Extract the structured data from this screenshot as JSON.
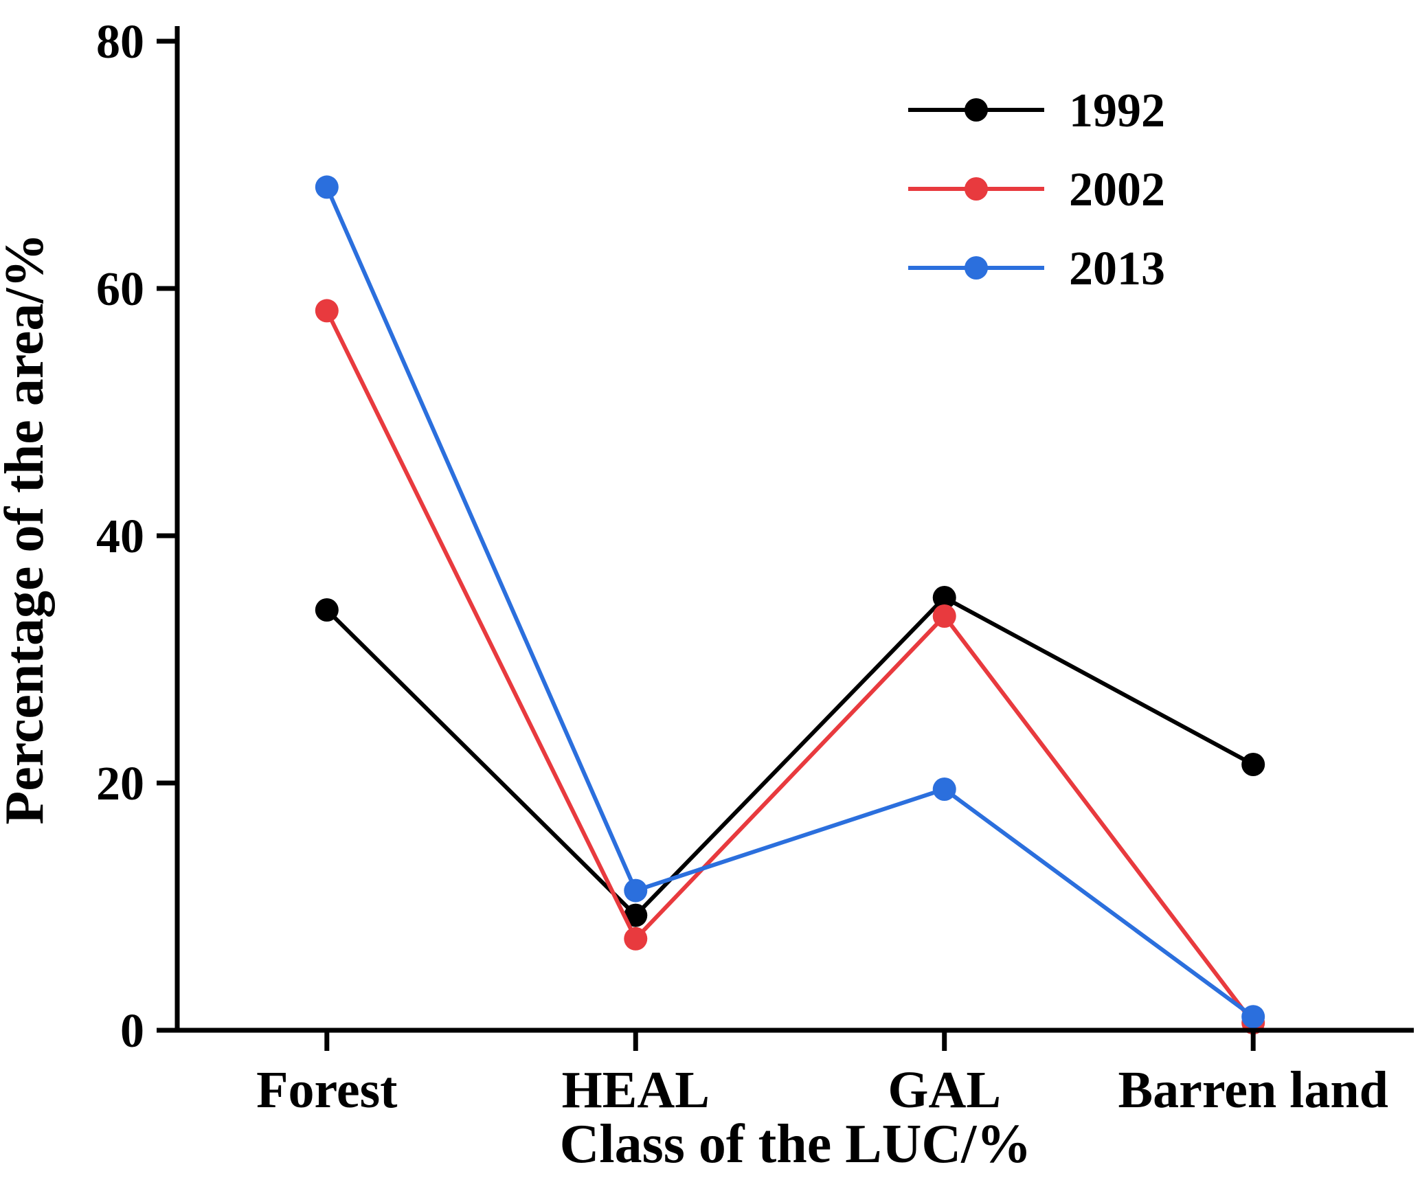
{
  "chart_data": {
    "type": "line",
    "title": "",
    "xlabel": "Class of the LUC/%",
    "ylabel": "Percentage of the area/%",
    "categories": [
      "Forest",
      "HEAL",
      "GAL",
      "Barren land"
    ],
    "series": [
      {
        "name": "1992",
        "color": "#000000",
        "values": [
          34.0,
          9.3,
          35.0,
          21.5
        ]
      },
      {
        "name": "2002",
        "color": "#e83a3e",
        "values": [
          58.2,
          7.4,
          33.5,
          0.6
        ]
      },
      {
        "name": "2013",
        "color": "#2b6fdd",
        "values": [
          68.2,
          11.3,
          19.5,
          1.1
        ]
      }
    ],
    "ylim": [
      0,
      80
    ],
    "yticks": [
      0,
      20,
      40,
      60,
      80
    ],
    "grid": false,
    "legend_position": "top-right",
    "marker": "circle",
    "axis_color": "#000000"
  },
  "legend": {
    "items": [
      {
        "label": "1992",
        "color": "#000000"
      },
      {
        "label": "2002",
        "color": "#e83a3e"
      },
      {
        "label": "2013",
        "color": "#2b6fdd"
      }
    ]
  }
}
